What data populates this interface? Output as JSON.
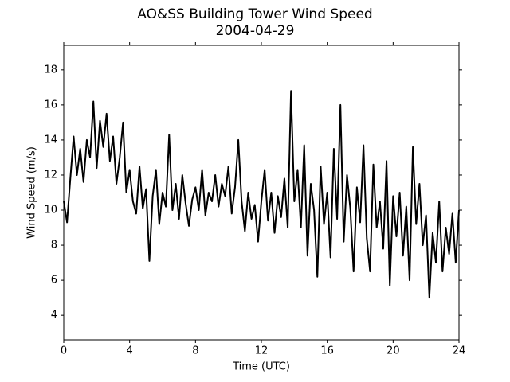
{
  "chart_data": {
    "type": "line",
    "title": "AO&SS Building Tower Wind Speed",
    "subtitle": "2004-04-29",
    "xlabel": "Time (UTC)",
    "ylabel": "Wind Speed (m/s)",
    "color": "#000000",
    "grid": false,
    "x": [
      0,
      0.2,
      0.4,
      0.6,
      0.8,
      1,
      1.2,
      1.4,
      1.6,
      1.8,
      2,
      2.2,
      2.4,
      2.6,
      2.8,
      3,
      3.2,
      3.4,
      3.6,
      3.8,
      4,
      4.2,
      4.4,
      4.6,
      4.8,
      5,
      5.2,
      5.4,
      5.6,
      5.8,
      6,
      6.2,
      6.4,
      6.6,
      6.8,
      7,
      7.2,
      7.4,
      7.6,
      7.8,
      8,
      8.2,
      8.4,
      8.6,
      8.8,
      9,
      9.2,
      9.4,
      9.6,
      9.8,
      10,
      10.2,
      10.4,
      10.6,
      10.8,
      11,
      11.2,
      11.4,
      11.6,
      11.8,
      12,
      12.2,
      12.4,
      12.6,
      12.8,
      13,
      13.2,
      13.4,
      13.6,
      13.8,
      14,
      14.2,
      14.4,
      14.6,
      14.8,
      15,
      15.2,
      15.4,
      15.6,
      15.8,
      16,
      16.2,
      16.4,
      16.6,
      16.8,
      17,
      17.2,
      17.4,
      17.6,
      17.8,
      18,
      18.2,
      18.4,
      18.6,
      18.8,
      19,
      19.2,
      19.4,
      19.6,
      19.8,
      20,
      20.2,
      20.4,
      20.6,
      20.8,
      21,
      21.2,
      21.4,
      21.6,
      21.8,
      22,
      22.2,
      22.4,
      22.6,
      22.8,
      23,
      23.2,
      23.4,
      23.6,
      23.8,
      24
    ],
    "values": [
      10.5,
      9.3,
      11.8,
      14.2,
      12.0,
      13.5,
      11.6,
      14.0,
      13.0,
      16.2,
      12.4,
      15.1,
      13.6,
      15.5,
      12.8,
      14.2,
      11.5,
      13.0,
      15.0,
      11.0,
      12.3,
      10.5,
      9.8,
      12.5,
      10.1,
      11.2,
      7.1,
      10.8,
      12.3,
      9.2,
      11.0,
      10.2,
      14.3,
      10.0,
      11.5,
      9.5,
      12.0,
      10.4,
      9.1,
      10.6,
      11.3,
      10.0,
      12.3,
      9.7,
      11.0,
      10.5,
      12.0,
      10.2,
      11.5,
      10.8,
      12.5,
      9.8,
      11.3,
      14.0,
      10.5,
      8.8,
      11.0,
      9.5,
      10.3,
      8.2,
      10.5,
      12.3,
      9.4,
      11.0,
      8.7,
      10.8,
      9.6,
      11.8,
      9.0,
      16.8,
      10.5,
      12.3,
      9.0,
      13.7,
      7.4,
      11.5,
      10.0,
      6.2,
      12.5,
      9.2,
      11.0,
      7.3,
      13.5,
      9.5,
      16.0,
      8.2,
      12.0,
      10.1,
      6.5,
      11.3,
      9.3,
      13.7,
      8.4,
      6.5,
      12.6,
      9.0,
      10.5,
      7.8,
      12.8,
      5.7,
      10.8,
      8.5,
      11.0,
      7.4,
      10.2,
      6.0,
      13.6,
      9.2,
      11.5,
      8.0,
      9.7,
      5.0,
      8.7,
      7.0,
      10.5,
      6.5,
      9.0,
      7.5,
      9.8,
      7.0,
      10.0
    ],
    "xlim": [
      0,
      24
    ],
    "xticks": [
      0,
      4,
      8,
      12,
      16,
      20,
      24
    ],
    "ylim": [
      2.6,
      19.4
    ],
    "yticks": [
      4,
      6,
      8,
      10,
      12,
      14,
      16,
      18
    ]
  }
}
